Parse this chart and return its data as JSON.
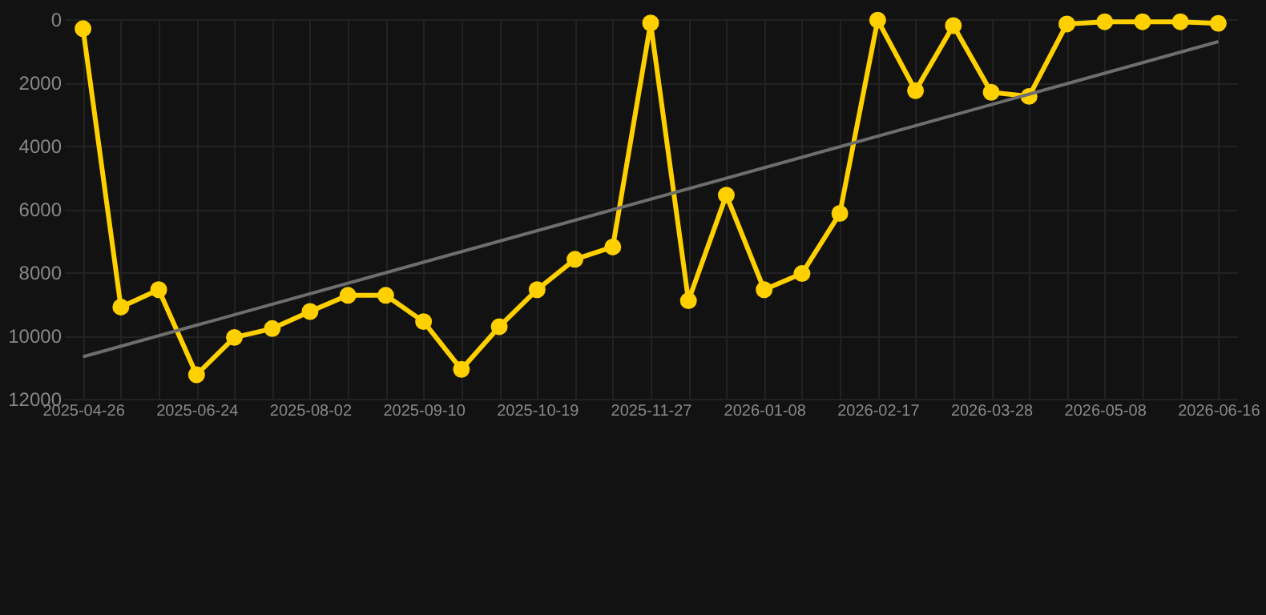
{
  "chart_data": {
    "type": "line",
    "categories": [
      "2025-04-26",
      null,
      null,
      "2025-06-24",
      null,
      null,
      "2025-08-02",
      null,
      null,
      "2025-09-10",
      null,
      null,
      "2025-10-19",
      null,
      null,
      "2025-11-27",
      null,
      null,
      "2026-01-08",
      null,
      null,
      "2026-02-17",
      null,
      null,
      "2026-03-28",
      null,
      null,
      "2026-05-08",
      null,
      null,
      "2026-06-16"
    ],
    "series": [
      {
        "color": "#ffd000",
        "marker": "circle",
        "values": [
          300,
          9100,
          8550,
          11240,
          10060,
          9780,
          9240,
          8730,
          8730,
          9560,
          11070,
          9720,
          8550,
          7590,
          7200,
          120,
          8900,
          5560,
          8550,
          8040,
          6140,
          30,
          2260,
          200,
          2310,
          2440,
          150,
          80,
          80,
          80,
          130
        ]
      },
      {
        "type": "line",
        "color": "#6e6e6e",
        "marker": "none",
        "values": [
          10670,
          null,
          null,
          null,
          null,
          null,
          null,
          null,
          null,
          null,
          null,
          null,
          null,
          null,
          null,
          null,
          null,
          null,
          null,
          null,
          null,
          null,
          null,
          null,
          null,
          null,
          null,
          null,
          null,
          null,
          710
        ]
      }
    ],
    "ylim": [
      12000,
      0
    ],
    "yticks": [
      0,
      2000,
      4000,
      6000,
      8000,
      10000,
      12000
    ],
    "grid": true
  }
}
